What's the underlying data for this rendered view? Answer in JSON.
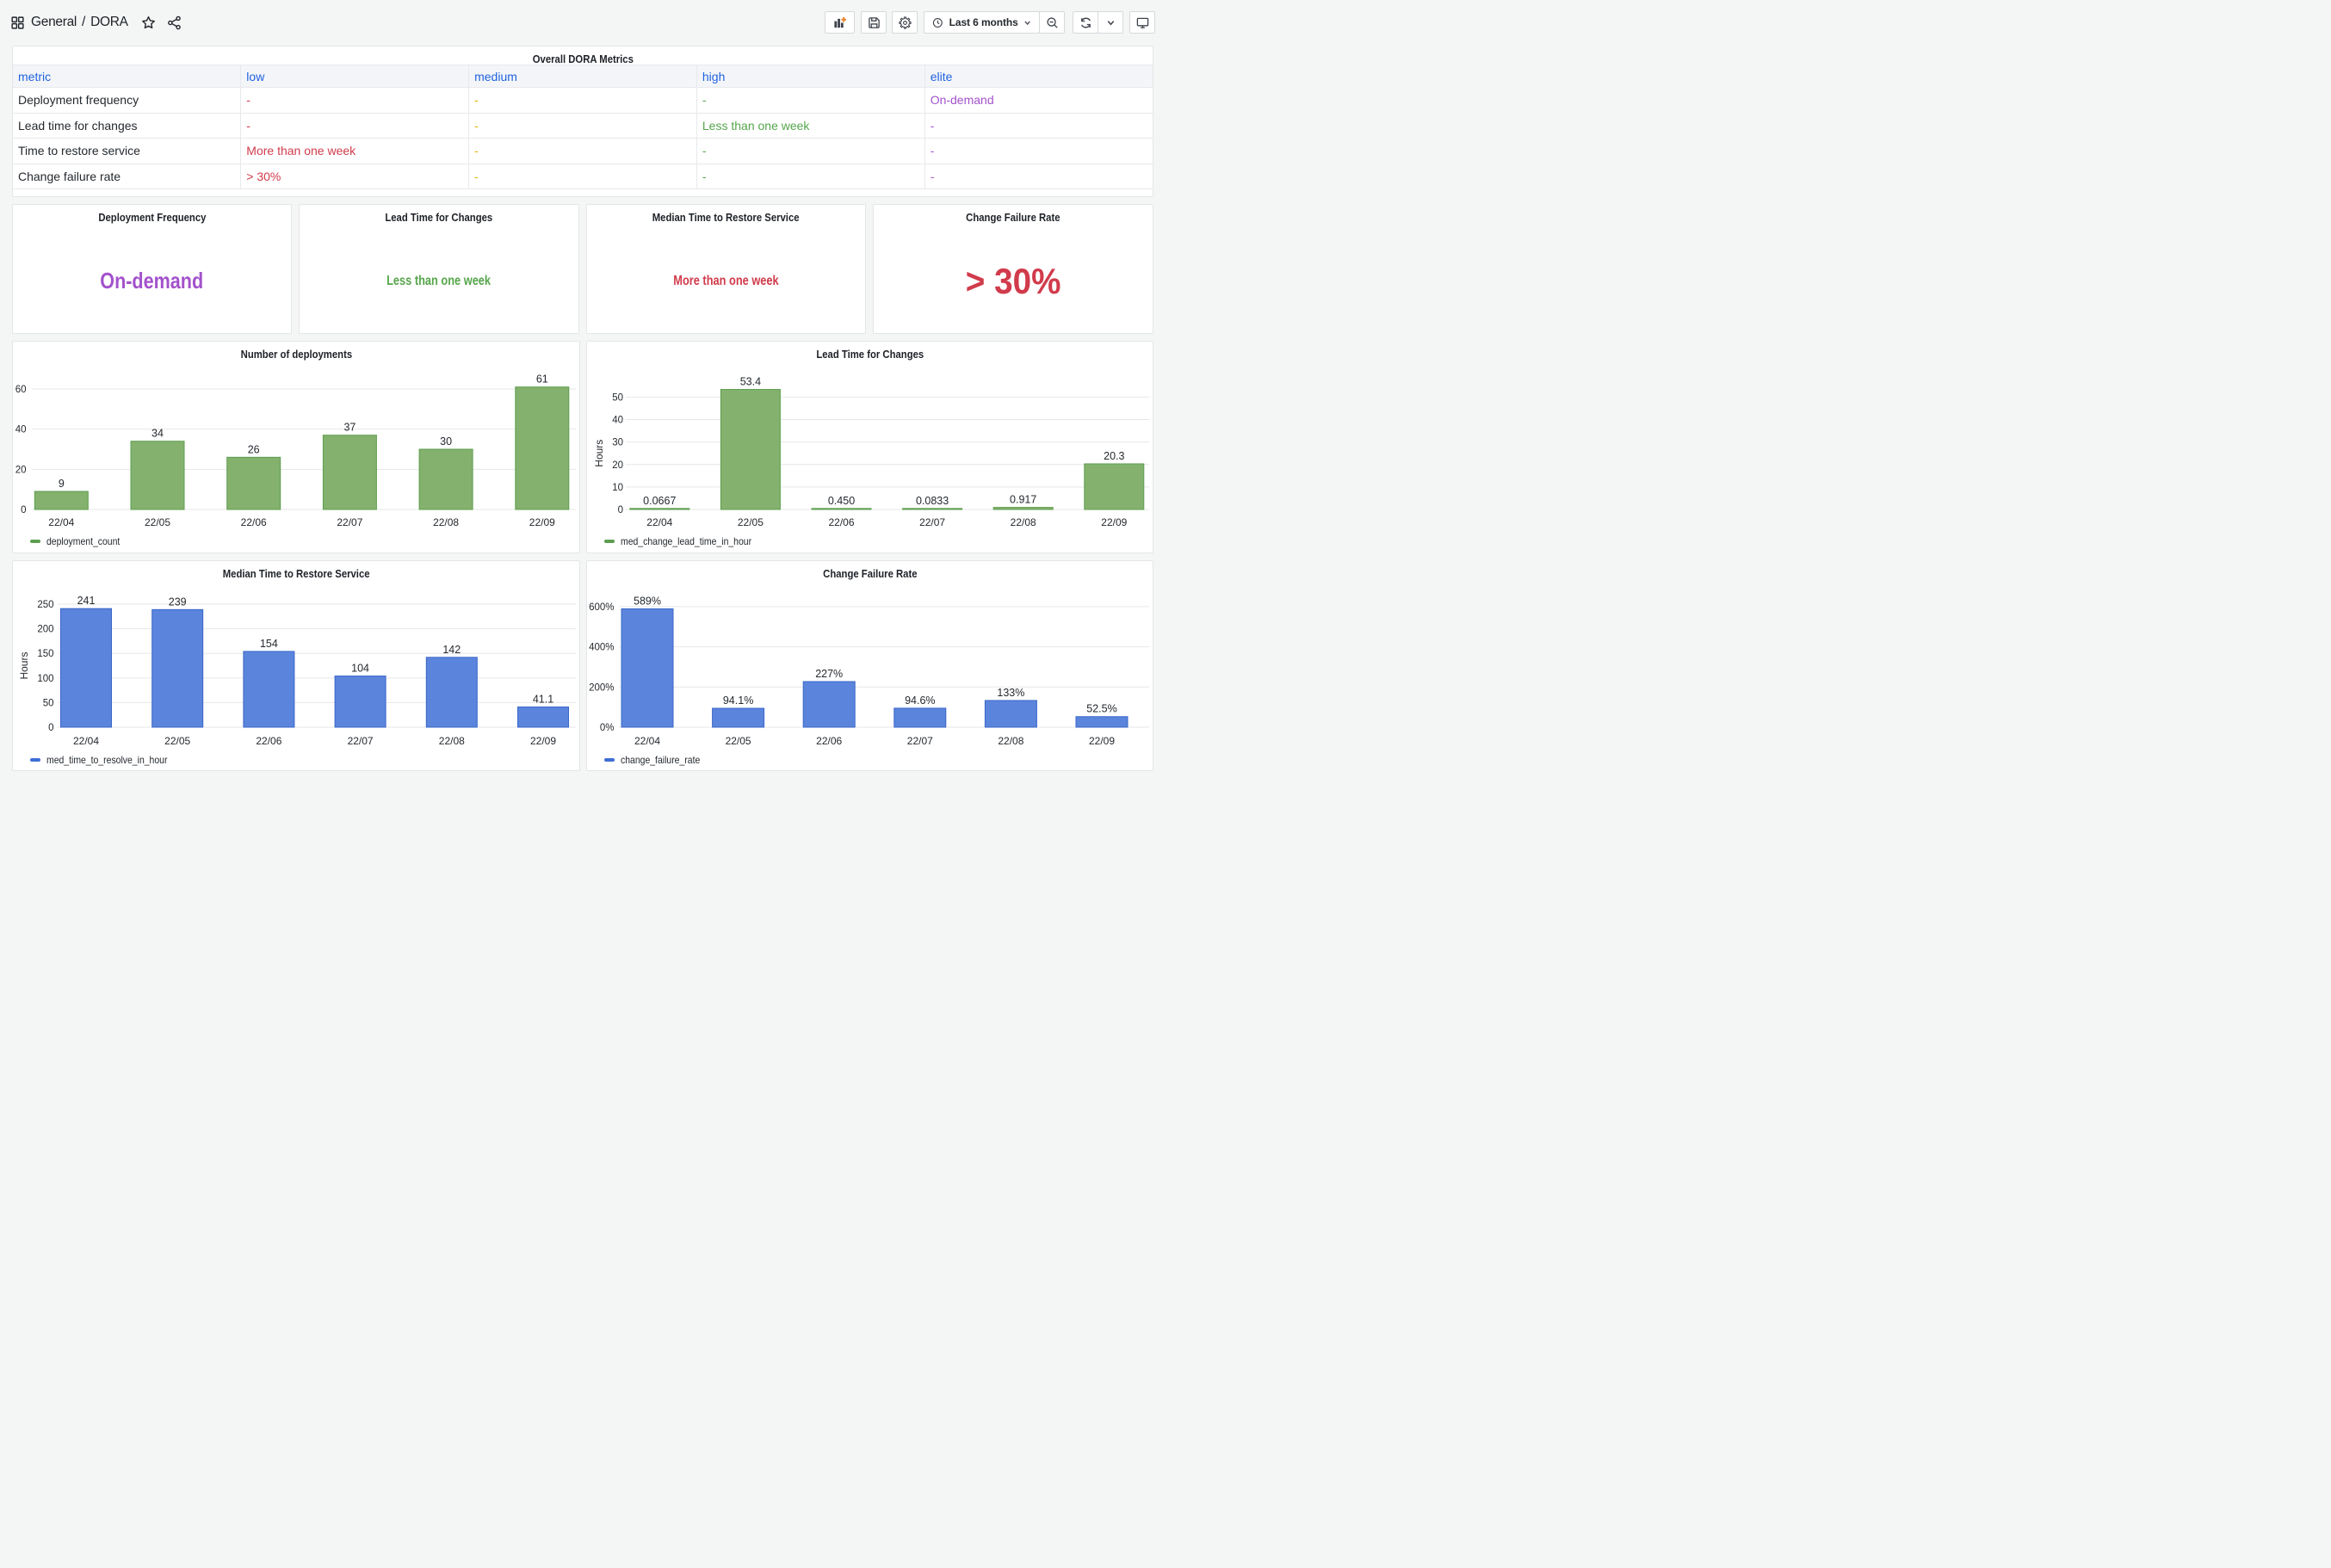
{
  "header": {
    "breadcrumb": {
      "section": "General",
      "separator": "/",
      "title": "DORA"
    },
    "toolbar": {
      "time_range_label": "Last 6 months"
    }
  },
  "table_panel": {
    "title": "Overall DORA Metrics",
    "columns": [
      "metric",
      "low",
      "medium",
      "high",
      "elite"
    ],
    "rows": [
      {
        "metric": "Deployment frequency",
        "low": "-",
        "medium": "-",
        "high": "-",
        "elite": "On-demand"
      },
      {
        "metric": "Lead time for changes",
        "low": "-",
        "medium": "-",
        "high": "Less than one week",
        "elite": "-"
      },
      {
        "metric": "Time to restore service",
        "low": "More than one week",
        "medium": "-",
        "high": "-",
        "elite": "-"
      },
      {
        "metric": "Change failure rate",
        "low": "> 30%",
        "medium": "-",
        "high": "-",
        "elite": "-"
      }
    ],
    "column_colors": {
      "metric": "#24292e",
      "low": "#d13b4b",
      "medium": "#e0b400",
      "high": "#56a64b",
      "elite": "#a352cc"
    },
    "header_color": "#1f62e0"
  },
  "stat_panels": [
    {
      "title": "Deployment Frequency",
      "value": "On-demand",
      "color": "#a352cc"
    },
    {
      "title": "Lead Time for Changes",
      "value": "Less than one week",
      "color": "#56a64b"
    },
    {
      "title": "Median Time to Restore Service",
      "value": "More than one week",
      "color": "#d13b4b"
    },
    {
      "title": "Change Failure Rate",
      "value": "> 30%",
      "color": "#d13b4b"
    }
  ],
  "chart_data": [
    {
      "type": "bar",
      "title": "Number of deployments",
      "categories": [
        "22/04",
        "22/05",
        "22/06",
        "22/07",
        "22/08",
        "22/09"
      ],
      "series": [
        {
          "name": "deployment_count",
          "values": [
            9,
            34,
            26,
            37,
            30,
            61
          ]
        }
      ],
      "value_labels": [
        "9",
        "34",
        "26",
        "37",
        "30",
        "61"
      ],
      "xlabel": "",
      "ylabel": "",
      "yticks": [
        0,
        20,
        40,
        60
      ],
      "tick_suffix": "",
      "ylim": [
        0,
        65
      ],
      "grid": true,
      "legend_position": "bottom-left",
      "bar_fill": "#84b16d",
      "bar_stroke": "#5d9e4f",
      "legend_color": "#5d9e4f"
    },
    {
      "type": "bar",
      "title": "Lead Time for Changes",
      "categories": [
        "22/04",
        "22/05",
        "22/06",
        "22/07",
        "22/08",
        "22/09"
      ],
      "series": [
        {
          "name": "med_change_lead_time_in_hour",
          "values": [
            0.0667,
            53.4,
            0.45,
            0.0833,
            0.917,
            20.3
          ]
        }
      ],
      "value_labels": [
        "0.0667",
        "53.4",
        "0.450",
        "0.0833",
        "0.917",
        "20.3"
      ],
      "xlabel": "",
      "ylabel": "Hours",
      "yticks": [
        0,
        10,
        20,
        30,
        40,
        50
      ],
      "tick_suffix": "",
      "ylim": [
        0,
        55
      ],
      "grid": true,
      "legend_position": "bottom-left",
      "bar_fill": "#84b16d",
      "bar_stroke": "#5d9e4f",
      "legend_color": "#5d9e4f"
    },
    {
      "type": "bar",
      "title": "Median Time to Restore Service",
      "categories": [
        "22/04",
        "22/05",
        "22/06",
        "22/07",
        "22/08",
        "22/09"
      ],
      "series": [
        {
          "name": "med_time_to_resolve_in_hour",
          "values": [
            241,
            239,
            154,
            104,
            142,
            41.1
          ]
        }
      ],
      "value_labels": [
        "241",
        "239",
        "154",
        "104",
        "142",
        "41.1"
      ],
      "xlabel": "",
      "ylabel": "Hours",
      "yticks": [
        0,
        50,
        100,
        150,
        200,
        250
      ],
      "tick_suffix": "",
      "ylim": [
        0,
        260
      ],
      "grid": true,
      "legend_position": "bottom-left",
      "bar_fill": "#5b85dc",
      "bar_stroke": "#3a66c9",
      "legend_color": "#3f6fd6"
    },
    {
      "type": "bar",
      "title": "Change Failure Rate",
      "categories": [
        "22/04",
        "22/05",
        "22/06",
        "22/07",
        "22/08",
        "22/09"
      ],
      "series": [
        {
          "name": "change_failure_rate",
          "values": [
            589,
            94.1,
            227,
            94.6,
            133,
            52.5
          ]
        }
      ],
      "value_labels": [
        "589%",
        "94.1%",
        "227%",
        "94.6%",
        "133%",
        "52.5%"
      ],
      "xlabel": "",
      "ylabel": "",
      "yticks": [
        0,
        200,
        400,
        600
      ],
      "tick_suffix": "%",
      "ylim": [
        0,
        620
      ],
      "grid": true,
      "legend_position": "bottom-left",
      "bar_fill": "#5b85dc",
      "bar_stroke": "#3a66c9",
      "legend_color": "#3f6fd6"
    }
  ]
}
